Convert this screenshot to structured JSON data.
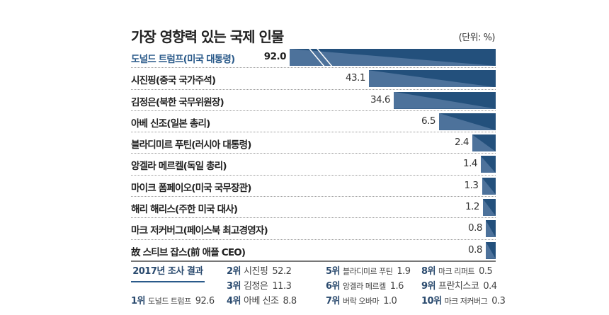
{
  "title": "가장 영향력 있는 국제 인물",
  "unit": "(단위: %)",
  "chart_data": {
    "type": "bar",
    "orientation": "horizontal",
    "title": "가장 영향력 있는 국제 인물",
    "unit": "(단위: %)",
    "categories": [
      "도널드 트럼프(미국 대통령)",
      "시진핑(중국 국가주석)",
      "김정은(북한 국무위원장)",
      "아베 신조(일본 총리)",
      "블라디미르 푸틴(러시아 대통령)",
      "앙겔라 메르켈(독일 총리)",
      "마이크 폼페이오(미국 국무장관)",
      "해리 해리스(주한 미국 대사)",
      "마크 저커버그(페이스북 최고경영자)",
      "故 스티브 잡스(前 애플 CEO)"
    ],
    "values": [
      92.0,
      43.1,
      34.6,
      6.5,
      2.4,
      1.4,
      1.3,
      1.2,
      0.8,
      0.8
    ],
    "value_labels": [
      "92.0",
      "43.1",
      "34.6",
      "6.5",
      "2.4",
      "1.4",
      "1.3",
      "1.2",
      "0.8",
      "0.8"
    ],
    "bar_color": "#23507c",
    "highlight_color": "#2a5a8a",
    "first_bar_broken": true
  },
  "survey": {
    "title": "2017년 조사 결과",
    "items": [
      {
        "rank": "1위",
        "name": "도널드 트럼프",
        "value": "92.6"
      },
      {
        "rank": "2위",
        "name": "시진핑",
        "value": "52.2"
      },
      {
        "rank": "3위",
        "name": "김정은",
        "value": "11.3"
      },
      {
        "rank": "4위",
        "name": "아베 신조",
        "value": "8.8"
      },
      {
        "rank": "5위",
        "name": "블라디미르 푸틴",
        "value": "1.9"
      },
      {
        "rank": "6위",
        "name": "앙겔라 메르켈",
        "value": "1.6"
      },
      {
        "rank": "7위",
        "name": "버락 오바마",
        "value": "1.0"
      },
      {
        "rank": "8위",
        "name": "마크 리퍼트",
        "value": "0.5"
      },
      {
        "rank": "9위",
        "name": "프란치스코",
        "value": "0.4"
      },
      {
        "rank": "10위",
        "name": "마크 저커버그",
        "value": "0.3"
      }
    ]
  }
}
